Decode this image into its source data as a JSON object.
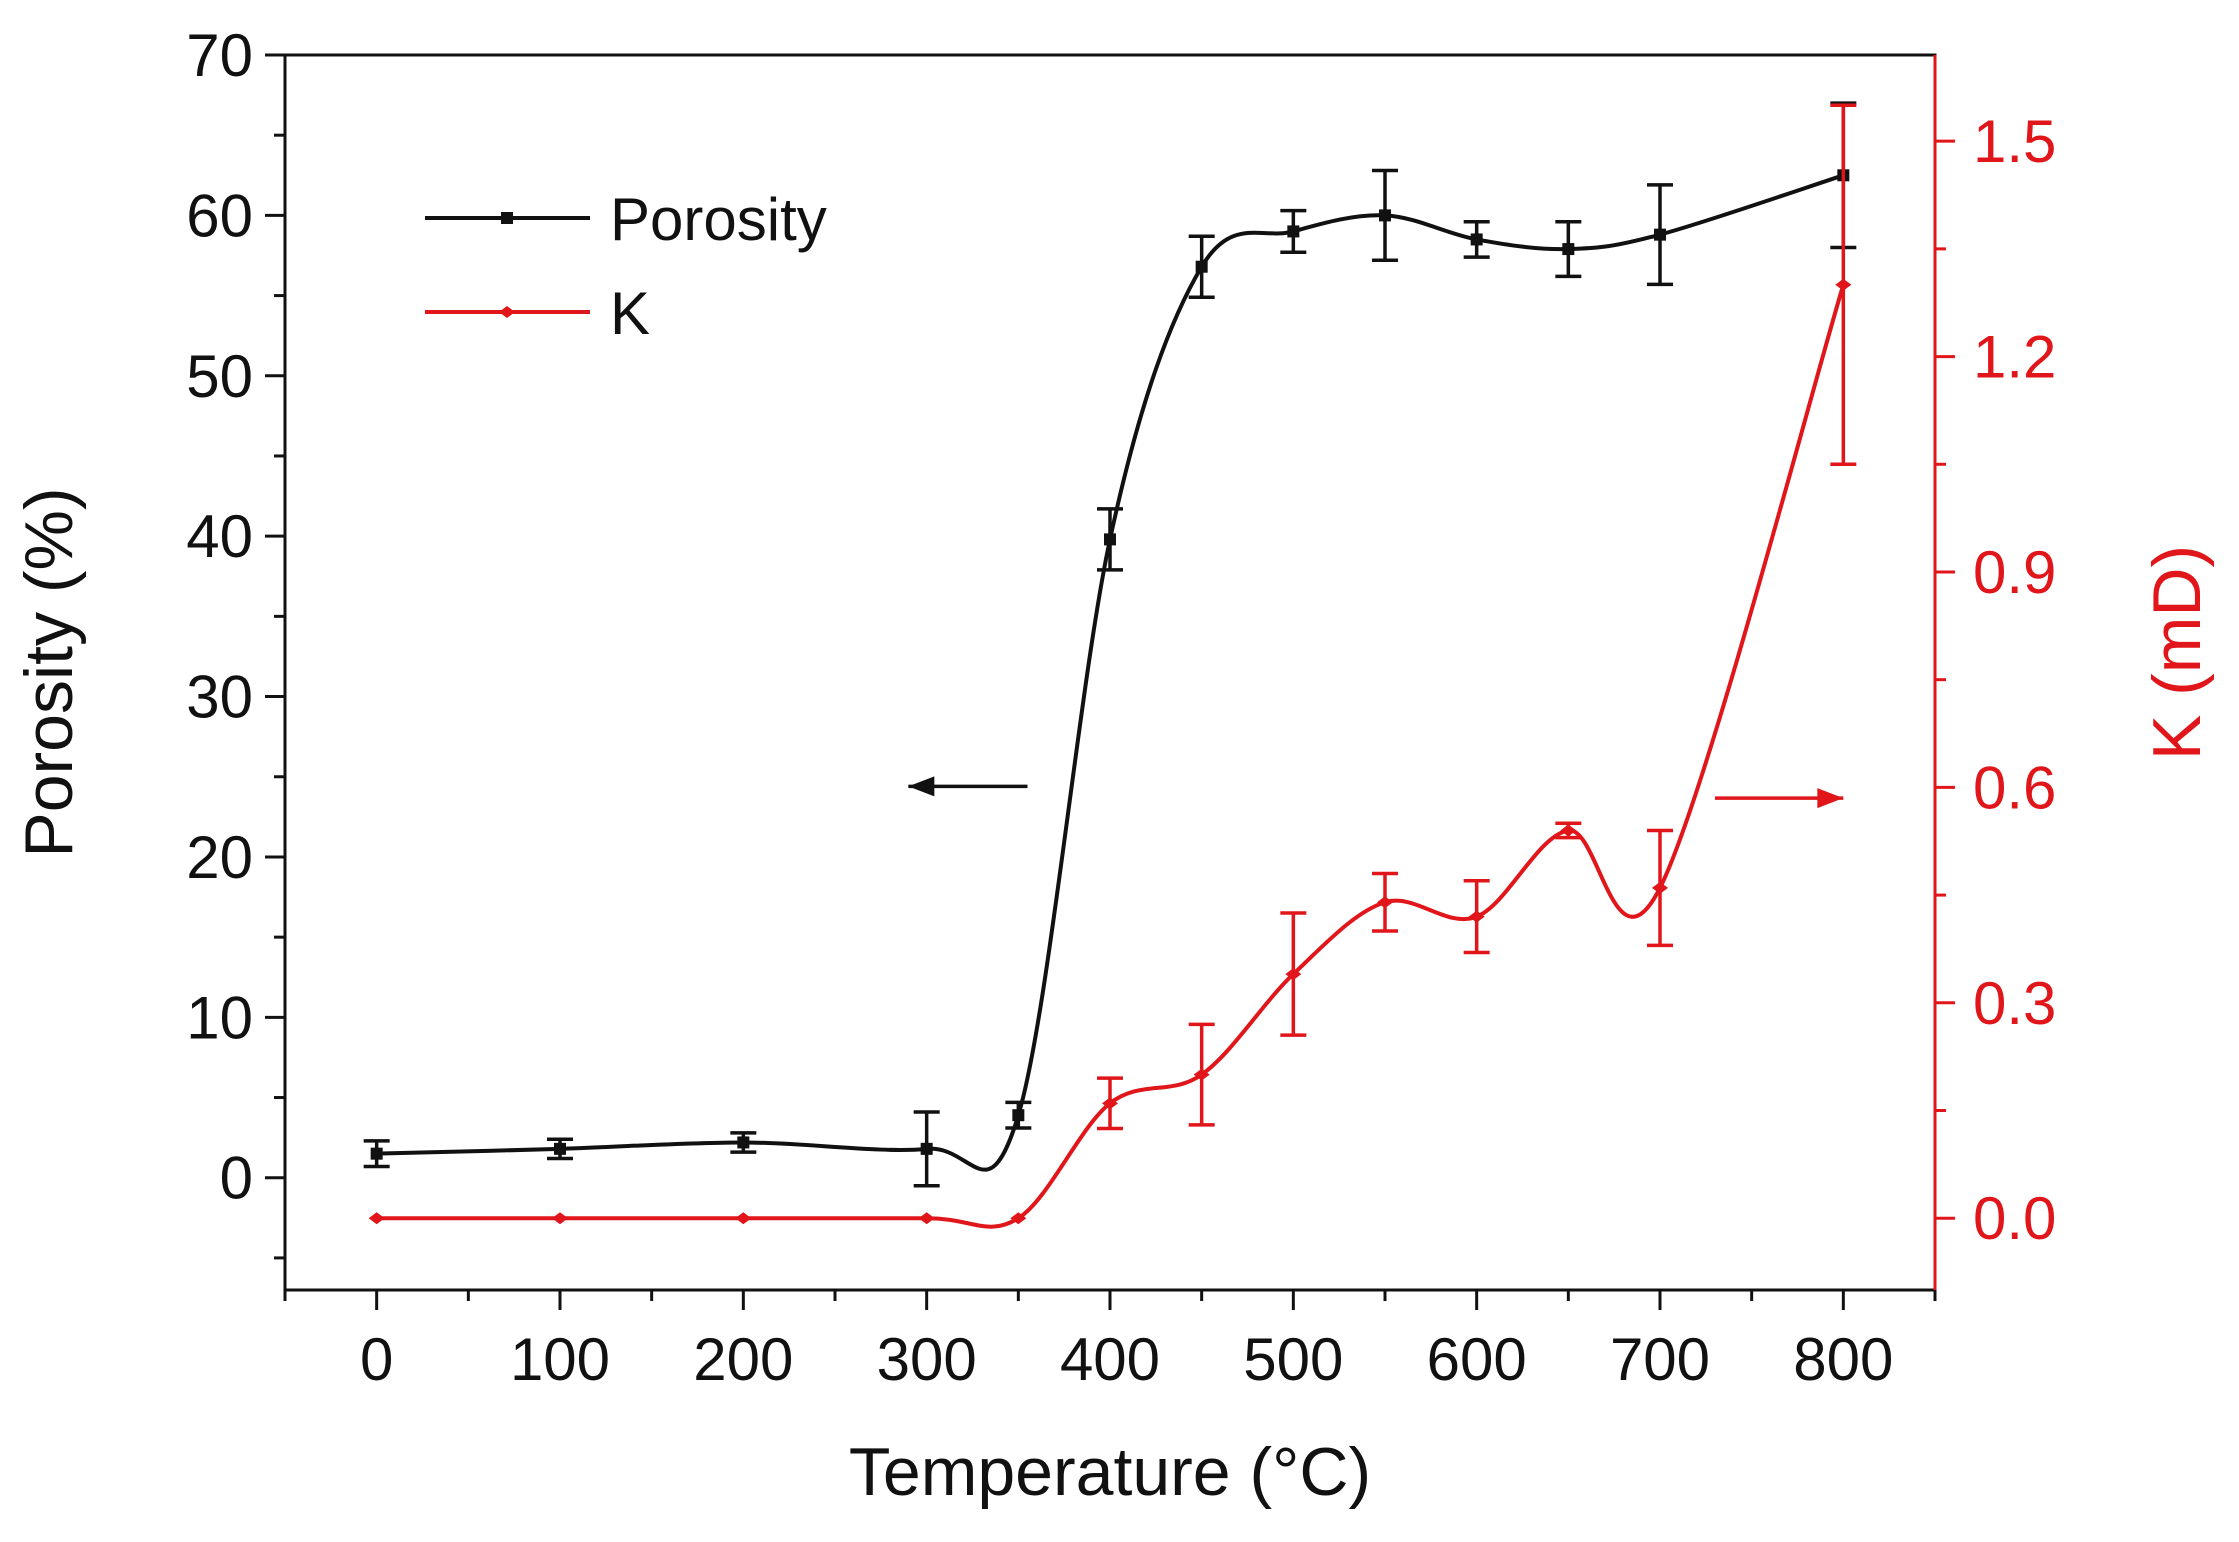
{
  "chart_data": {
    "type": "line",
    "xlabel": "Temperature (°C)",
    "ylabel_left": "Porosity (%)",
    "ylabel_right": "K (mD)",
    "xlim": [
      -50,
      850
    ],
    "ylim_left": [
      -7,
      70
    ],
    "ylim_right": [
      -0.1,
      1.62
    ],
    "x_ticks": [
      "0",
      "100",
      "200",
      "300",
      "400",
      "500",
      "600",
      "700",
      "800"
    ],
    "y_left_ticks": [
      "0",
      "10",
      "20",
      "30",
      "40",
      "50",
      "60",
      "70"
    ],
    "y_right_ticks": [
      "0.0",
      "0.3",
      "0.6",
      "0.9",
      "1.2",
      "1.5"
    ],
    "legend_position": "top-left",
    "series": [
      {
        "name": "Porosity",
        "axis": "left",
        "color": "#111111",
        "x": [
          0,
          100,
          200,
          300,
          350,
          400,
          450,
          500,
          550,
          600,
          650,
          700,
          800
        ],
        "values": [
          1.5,
          1.8,
          2.2,
          1.8,
          3.9,
          39.8,
          56.8,
          59.0,
          60.0,
          58.5,
          57.9,
          58.8,
          62.5
        ],
        "errors": [
          0.8,
          0.6,
          0.6,
          2.3,
          0.8,
          1.9,
          1.9,
          1.3,
          2.8,
          1.1,
          1.7,
          3.1,
          4.5
        ]
      },
      {
        "name": "K",
        "axis": "right",
        "color": "#e0161a",
        "x": [
          0,
          100,
          200,
          300,
          350,
          400,
          450,
          500,
          550,
          600,
          650,
          700,
          800
        ],
        "values": [
          0.0,
          0.0,
          0.0,
          0.0,
          0.0,
          0.16,
          0.2,
          0.34,
          0.44,
          0.42,
          0.54,
          0.46,
          1.3
        ],
        "errors": [
          0.0,
          0.0,
          0.0,
          0.0,
          0.0,
          0.035,
          0.07,
          0.085,
          0.04,
          0.05,
          0.01,
          0.08,
          0.25
        ]
      }
    ],
    "annotations": [
      {
        "type": "arrow",
        "direction": "left",
        "points_to": "left axis",
        "series": "Porosity",
        "x_from": 355,
        "x_to": 290,
        "y": 24.4,
        "axis": "left"
      },
      {
        "type": "arrow",
        "direction": "right",
        "points_to": "right axis",
        "series": "K",
        "x_from": 730,
        "x_to": 800,
        "y": 0.585,
        "axis": "right"
      }
    ]
  }
}
